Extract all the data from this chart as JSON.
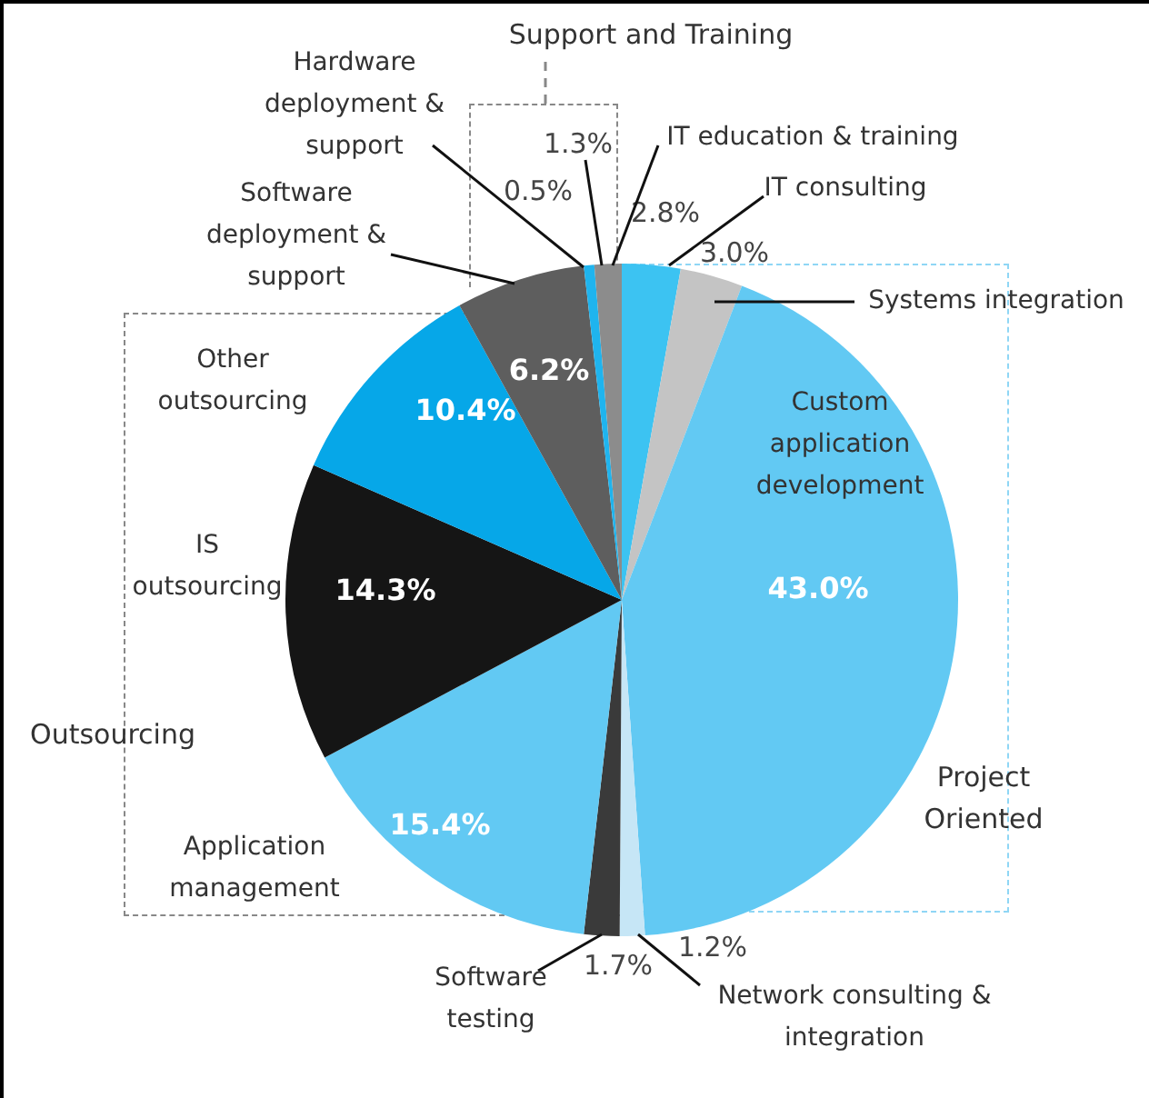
{
  "chart_data": {
    "type": "pie",
    "categories": [
      "IT consulting",
      "Systems integration",
      "Custom application development",
      "Network consulting & integration",
      "Software testing",
      "Application management",
      "IS outsourcing",
      "Other outsourcing",
      "Software deployment & support",
      "Hardware deployment & support",
      "IT education & training"
    ],
    "values": [
      2.8,
      3.0,
      43.0,
      1.2,
      1.7,
      15.4,
      14.3,
      10.4,
      6.2,
      0.5,
      1.3
    ],
    "value_labels": [
      "2.8%",
      "3.0%",
      "43.0%",
      "1.2%",
      "1.7%",
      "15.4%",
      "14.3%",
      "10.4%",
      "6.2%",
      "0.5%",
      "1.3%"
    ],
    "colors": [
      "#3cc3f2",
      "#c4c4c4",
      "#62c9f3",
      "#c6e6f6",
      "#3a3a3a",
      "#62c9f3",
      "#151515",
      "#06a7e8",
      "#5e5e5e",
      "#1fb4ee",
      "#8c8c8c"
    ],
    "annotations": [
      "Support and Training",
      "Project Oriented",
      "Outsourcing"
    ],
    "legend": false
  }
}
